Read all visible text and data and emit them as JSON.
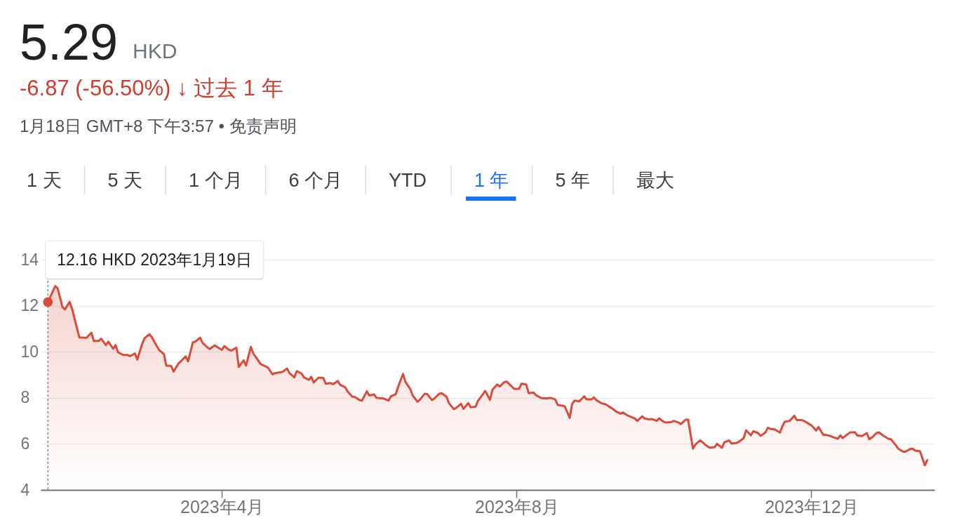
{
  "chart_data": {
    "type": "area",
    "title": "5.29 HKD",
    "subtitle": "-6.87 (-56.50%) ↓ 过去 1 年",
    "annotations": [
      "1月18日 GMT+8 下午3:57 • 免责声明",
      "1 天",
      "5 天",
      "1 个月",
      "6 个月",
      "YTD",
      "1 年",
      "5 年",
      "最大",
      {
        "text": "12.16 HKD 2023年1月19日",
        "x": "2023-01-19",
        "y": 12.16
      }
    ],
    "x": [
      "2023-01-19",
      "2023-01-22",
      "2023-01-23",
      "2023-01-25",
      "2023-01-26",
      "2023-01-28",
      "2023-01-29",
      "2023-02-01",
      "2023-02-04",
      "2023-02-06",
      "2023-02-07",
      "2023-02-09",
      "2023-02-10",
      "2023-02-12",
      "2023-02-13",
      "2023-02-15",
      "2023-02-16",
      "2023-02-17",
      "2023-02-19",
      "2023-02-21",
      "2023-02-22",
      "2023-02-24",
      "2023-02-25",
      "2023-02-27",
      "2023-02-28",
      "2023-03-02",
      "2023-03-03",
      "2023-03-05",
      "2023-03-06",
      "2023-03-08",
      "2023-03-09",
      "2023-03-11",
      "2023-03-12",
      "2023-03-14",
      "2023-03-15",
      "2023-03-17",
      "2023-03-18",
      "2023-03-20",
      "2023-03-21",
      "2023-03-23",
      "2023-03-24",
      "2023-03-26",
      "2023-03-27",
      "2023-03-29",
      "2023-03-30",
      "2023-04-01",
      "2023-04-02",
      "2023-04-04",
      "2023-04-05",
      "2023-04-07",
      "2023-04-08",
      "2023-04-10",
      "2023-04-11",
      "2023-04-13",
      "2023-04-14",
      "2023-04-16",
      "2023-04-17",
      "2023-04-19",
      "2023-04-20",
      "2023-04-22",
      "2023-04-23",
      "2023-04-25",
      "2023-04-26",
      "2023-04-28",
      "2023-04-29",
      "2023-05-01",
      "2023-05-02",
      "2023-05-04",
      "2023-05-05",
      "2023-05-07",
      "2023-05-08",
      "2023-05-09",
      "2023-05-11",
      "2023-05-13",
      "2023-05-14",
      "2023-05-16",
      "2023-05-17",
      "2023-05-19",
      "2023-05-20",
      "2023-05-22",
      "2023-05-23",
      "2023-05-25",
      "2023-05-26",
      "2023-05-28",
      "2023-05-29",
      "2023-05-31",
      "2023-06-01",
      "2023-06-03",
      "2023-06-04",
      "2023-06-07",
      "2023-06-09",
      "2023-06-10",
      "2023-06-12",
      "2023-06-13",
      "2023-06-15",
      "2023-06-16",
      "2023-06-18",
      "2023-06-19",
      "2023-06-21",
      "2023-06-22",
      "2023-06-24",
      "2023-06-25",
      "2023-06-27",
      "2023-06-28",
      "2023-06-30",
      "2023-07-01",
      "2023-07-03",
      "2023-07-04",
      "2023-07-06",
      "2023-07-07",
      "2023-07-09",
      "2023-07-10",
      "2023-07-12",
      "2023-07-13",
      "2023-07-15",
      "2023-07-16",
      "2023-07-18",
      "2023-07-19",
      "2023-07-21",
      "2023-07-22",
      "2023-07-24",
      "2023-07-25",
      "2023-07-27",
      "2023-07-28",
      "2023-07-30",
      "2023-07-31",
      "2023-08-02",
      "2023-08-03",
      "2023-08-05",
      "2023-08-06",
      "2023-08-08",
      "2023-08-09",
      "2023-08-11",
      "2023-08-12",
      "2023-08-14",
      "2023-08-15",
      "2023-08-17",
      "2023-08-18",
      "2023-08-20",
      "2023-08-21",
      "2023-08-23",
      "2023-08-24",
      "2023-08-25",
      "2023-08-27",
      "2023-08-29",
      "2023-08-30",
      "2023-09-01",
      "2023-09-02",
      "2023-09-03",
      "2023-09-05",
      "2023-09-07",
      "2023-09-08",
      "2023-09-10",
      "2023-09-11",
      "2023-09-13",
      "2023-09-14",
      "2023-09-16",
      "2023-09-17",
      "2023-09-19",
      "2023-09-20",
      "2023-09-22",
      "2023-09-23",
      "2023-09-25",
      "2023-09-26",
      "2023-09-28",
      "2023-09-29",
      "2023-10-01",
      "2023-10-02",
      "2023-10-04",
      "2023-10-05",
      "2023-10-07",
      "2023-10-08",
      "2023-10-10",
      "2023-10-11",
      "2023-10-13",
      "2023-10-14",
      "2023-10-16",
      "2023-10-17",
      "2023-10-18",
      "2023-10-20",
      "2023-10-22",
      "2023-10-23",
      "2023-10-25",
      "2023-10-26",
      "2023-10-28",
      "2023-10-29",
      "2023-10-31",
      "2023-11-01",
      "2023-11-03",
      "2023-11-04",
      "2023-11-06",
      "2023-11-07",
      "2023-11-09",
      "2023-11-10",
      "2023-11-12",
      "2023-11-13",
      "2023-11-14",
      "2023-11-16",
      "2023-11-18",
      "2023-11-19",
      "2023-11-20",
      "2023-11-22",
      "2023-11-24",
      "2023-11-25",
      "2023-11-27",
      "2023-11-28",
      "2023-11-29",
      "2023-12-01",
      "2023-12-03",
      "2023-12-04",
      "2023-12-06",
      "2023-12-07",
      "2023-12-09",
      "2023-12-10",
      "2023-12-12",
      "2023-12-13",
      "2023-12-14",
      "2023-12-16",
      "2023-12-17",
      "2023-12-19",
      "2023-12-20",
      "2023-12-22",
      "2023-12-24",
      "2023-12-25",
      "2023-12-26",
      "2023-12-28",
      "2023-12-29",
      "2023-12-31",
      "2024-01-02",
      "2024-01-03",
      "2024-01-05",
      "2024-01-06",
      "2024-01-08",
      "2024-01-09",
      "2024-01-11",
      "2024-01-12",
      "2024-01-13",
      "2024-01-15",
      "2024-01-17",
      "2024-01-18"
    ],
    "series": [
      {
        "color": "#d94c3b",
        "values": [
          12.16,
          12.85,
          12.76,
          11.95,
          11.84,
          12.17,
          11.86,
          10.62,
          10.61,
          10.83,
          10.47,
          10.47,
          10.57,
          10.29,
          10.44,
          10.13,
          10.29,
          9.98,
          9.87,
          9.86,
          9.81,
          9.93,
          9.66,
          10.34,
          10.59,
          10.76,
          10.64,
          10.26,
          10.08,
          9.9,
          9.4,
          9.39,
          9.14,
          9.49,
          9.58,
          9.8,
          9.58,
          10.41,
          10.44,
          10.61,
          10.39,
          10.19,
          10.12,
          10.28,
          10.21,
          10.08,
          10.25,
          10.08,
          10.05,
          10.18,
          9.34,
          9.63,
          9.4,
          10.21,
          9.93,
          9.63,
          9.47,
          9.37,
          9.32,
          9.02,
          9.07,
          9.11,
          9.12,
          9.27,
          9.07,
          8.89,
          9.16,
          9.05,
          8.89,
          8.78,
          8.91,
          8.67,
          8.88,
          8.86,
          8.61,
          8.64,
          8.59,
          8.73,
          8.56,
          8.46,
          8.28,
          8.05,
          8.04,
          7.9,
          7.88,
          8.28,
          8.1,
          8.15,
          8.0,
          7.97,
          7.88,
          8.07,
          8.16,
          8.49,
          9.04,
          8.69,
          8.38,
          8.1,
          7.83,
          7.92,
          8.18,
          8.16,
          7.9,
          7.97,
          8.18,
          8.2,
          8.05,
          7.77,
          7.51,
          7.56,
          7.74,
          7.52,
          7.77,
          7.59,
          7.61,
          7.87,
          8.15,
          8.3,
          7.92,
          8.35,
          8.58,
          8.49,
          8.69,
          8.7,
          8.49,
          8.39,
          8.39,
          8.61,
          8.58,
          8.2,
          8.23,
          8.12,
          8.0,
          7.98,
          7.98,
          8.0,
          7.93,
          7.69,
          7.66,
          7.62,
          7.13,
          7.74,
          7.88,
          7.85,
          8.07,
          7.93,
          7.93,
          8.02,
          7.9,
          7.77,
          7.71,
          7.64,
          7.51,
          7.42,
          7.31,
          7.36,
          7.23,
          7.19,
          7.1,
          7.0,
          7.2,
          7.1,
          7.06,
          7.08,
          7.0,
          7.11,
          6.95,
          6.93,
          6.95,
          7.0,
          6.93,
          6.86,
          7.05,
          7.06,
          5.79,
          5.97,
          6.15,
          6.07,
          5.97,
          5.83,
          5.86,
          6.0,
          5.83,
          6.07,
          6.15,
          6.01,
          6.04,
          6.09,
          6.25,
          6.59,
          6.37,
          6.55,
          6.47,
          6.35,
          6.49,
          6.7,
          6.65,
          6.62,
          6.49,
          6.76,
          6.96,
          7.0,
          7.22,
          7.03,
          7.03,
          7.0,
          6.93,
          6.81,
          6.58,
          6.73,
          6.39,
          6.39,
          6.34,
          6.29,
          6.22,
          6.37,
          6.25,
          6.42,
          6.49,
          6.51,
          6.37,
          6.34,
          6.47,
          6.2,
          6.27,
          6.47,
          6.5,
          6.34,
          6.22,
          6.2,
          5.94,
          5.79,
          5.66,
          5.66,
          5.78,
          5.78,
          5.71,
          5.68,
          5.07,
          5.29
        ]
      }
    ],
    "xlim": [
      "2023-01-16",
      "2024-01-21"
    ],
    "xticks": [
      {
        "value": "2023-04-01",
        "label": "2023年4月"
      },
      {
        "value": "2023-08-01",
        "label": "2023年8月"
      },
      {
        "value": "2023-12-01",
        "label": "2023年12月"
      }
    ],
    "ylim": [
      4,
      14
    ],
    "yticks": [
      4,
      6,
      8,
      10,
      12,
      14
    ],
    "grid": "y",
    "ref_lines": [
      {
        "axis": "x",
        "value": "2023-01-19",
        "color": "#80868b",
        "line_style": "dotted"
      }
    ]
  }
}
